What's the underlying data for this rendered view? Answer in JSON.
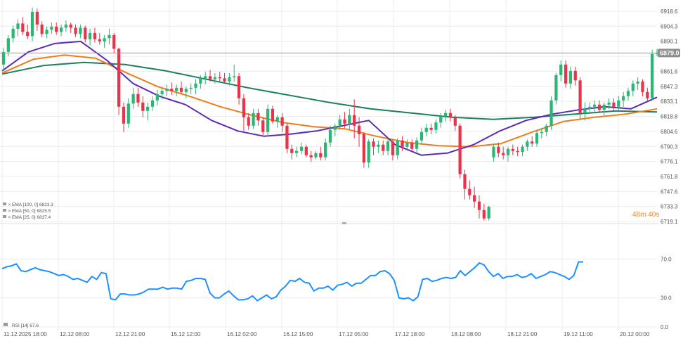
{
  "chart_data": [
    {
      "type": "candlestick",
      "title": "",
      "ylim": [
        6719.1,
        6918.6
      ],
      "current_price": 6879.0,
      "countdown": "48m 40s",
      "y_ticks": [
        "6918.6",
        "6904.3",
        "6890.1",
        "6875.8",
        "6861.6",
        "6847.3",
        "6833.1",
        "6818.8",
        "6804.6",
        "6790.3",
        "6776.1",
        "6761.8",
        "6747.6",
        "6733.3",
        "6719.1"
      ],
      "x_ticks": [
        "11.12.2025 18:00",
        "12.12 08:00",
        "12.12 21:00",
        "15.12 12:00",
        "16.12 02:00",
        "16.12 15:00",
        "17.12 05:00",
        "17.12 18:00",
        "18.12 08:00",
        "18.12 21:00",
        "19.12 11:00",
        "20.12 00:00"
      ],
      "legend": [
        {
          "label": "EMA [100, 0]",
          "value": "6823.3",
          "color": "#1a7f5a"
        },
        {
          "label": "EMA [50, 0]",
          "value": "6825.5",
          "color": "#f07c1a"
        },
        {
          "label": "EMA [25, 0]",
          "value": "6837.4",
          "color": "#5b2bb5"
        }
      ],
      "colors": {
        "up": "#2bb673",
        "down": "#e8334a",
        "grid": "#ececec",
        "axis_text": "#555555",
        "price_line": "#9a9a9a",
        "price_tag": "#8c8c8c",
        "countdown": "#f0861a"
      },
      "candles": [
        [
          6868,
          6884,
          6863,
          6880
        ],
        [
          6880,
          6896,
          6876,
          6893
        ],
        [
          6893,
          6905,
          6889,
          6902
        ],
        [
          6902,
          6911,
          6895,
          6907
        ],
        [
          6907,
          6913,
          6896,
          6899
        ],
        [
          6899,
          6906,
          6892,
          6895
        ],
        [
          6895,
          6922,
          6890,
          6918
        ],
        [
          6918,
          6921,
          6900,
          6906
        ],
        [
          6906,
          6909,
          6894,
          6897
        ],
        [
          6897,
          6904,
          6893,
          6901
        ],
        [
          6901,
          6908,
          6897,
          6904
        ],
        [
          6904,
          6908,
          6896,
          6899
        ],
        [
          6899,
          6906,
          6895,
          6903
        ],
        [
          6903,
          6910,
          6899,
          6906
        ],
        [
          6906,
          6908,
          6898,
          6903
        ],
        [
          6903,
          6906,
          6894,
          6897
        ],
        [
          6897,
          6906,
          6893,
          6903
        ],
        [
          6903,
          6905,
          6889,
          6892
        ],
        [
          6892,
          6902,
          6886,
          6898
        ],
        [
          6898,
          6903,
          6889,
          6892
        ],
        [
          6892,
          6898,
          6887,
          6890
        ],
        [
          6890,
          6896,
          6884,
          6893
        ],
        [
          6893,
          6902,
          6887,
          6896
        ],
        [
          6896,
          6898,
          6879,
          6883
        ],
        [
          6883,
          6884,
          6820,
          6828
        ],
        [
          6828,
          6832,
          6804,
          6812
        ],
        [
          6812,
          6836,
          6808,
          6831
        ],
        [
          6831,
          6846,
          6826,
          6840
        ],
        [
          6840,
          6846,
          6828,
          6832
        ],
        [
          6832,
          6838,
          6818,
          6824
        ],
        [
          6824,
          6832,
          6815,
          6828
        ],
        [
          6828,
          6838,
          6824,
          6834
        ],
        [
          6834,
          6844,
          6829,
          6840
        ],
        [
          6840,
          6846,
          6835,
          6843
        ],
        [
          6843,
          6849,
          6838,
          6845
        ],
        [
          6845,
          6851,
          6839,
          6843
        ],
        [
          6843,
          6849,
          6838,
          6846
        ],
        [
          6846,
          6852,
          6840,
          6842
        ],
        [
          6842,
          6847,
          6836,
          6845
        ],
        [
          6845,
          6850,
          6840,
          6846
        ],
        [
          6846,
          6854,
          6840,
          6850
        ],
        [
          6850,
          6858,
          6845,
          6855
        ],
        [
          6855,
          6861,
          6849,
          6857
        ],
        [
          6857,
          6863,
          6852,
          6854
        ],
        [
          6854,
          6860,
          6850,
          6856
        ],
        [
          6856,
          6861,
          6852,
          6855
        ],
        [
          6855,
          6860,
          6850,
          6852
        ],
        [
          6852,
          6860,
          6848,
          6856
        ],
        [
          6856,
          6868,
          6852,
          6857
        ],
        [
          6857,
          6860,
          6830,
          6836
        ],
        [
          6836,
          6840,
          6805,
          6818
        ],
        [
          6818,
          6822,
          6806,
          6810
        ],
        [
          6810,
          6826,
          6807,
          6822
        ],
        [
          6822,
          6826,
          6810,
          6815
        ],
        [
          6815,
          6818,
          6800,
          6804
        ],
        [
          6804,
          6830,
          6800,
          6826
        ],
        [
          6826,
          6829,
          6812,
          6814
        ],
        [
          6814,
          6820,
          6808,
          6818
        ],
        [
          6818,
          6822,
          6804,
          6810
        ],
        [
          6810,
          6812,
          6784,
          6788
        ],
        [
          6788,
          6792,
          6778,
          6784
        ],
        [
          6784,
          6790,
          6780,
          6786
        ],
        [
          6786,
          6794,
          6783,
          6790
        ],
        [
          6790,
          6792,
          6780,
          6782
        ],
        [
          6782,
          6786,
          6776,
          6780
        ],
        [
          6780,
          6786,
          6778,
          6784
        ],
        [
          6784,
          6790,
          6777,
          6780
        ],
        [
          6780,
          6798,
          6777,
          6794
        ],
        [
          6794,
          6810,
          6790,
          6806
        ],
        [
          6806,
          6812,
          6800,
          6810
        ],
        [
          6810,
          6820,
          6806,
          6816
        ],
        [
          6816,
          6823,
          6808,
          6812
        ],
        [
          6812,
          6826,
          6807,
          6820
        ],
        [
          6820,
          6835,
          6798,
          6810
        ],
        [
          6810,
          6818,
          6790,
          6802
        ],
        [
          6802,
          6804,
          6770,
          6775
        ],
        [
          6775,
          6797,
          6770,
          6795
        ],
        [
          6795,
          6798,
          6782,
          6790
        ],
        [
          6790,
          6796,
          6784,
          6792
        ],
        [
          6792,
          6796,
          6782,
          6786
        ],
        [
          6786,
          6798,
          6782,
          6795
        ],
        [
          6795,
          6797,
          6777,
          6782
        ],
        [
          6782,
          6798,
          6778,
          6796
        ],
        [
          6796,
          6800,
          6786,
          6790
        ],
        [
          6790,
          6797,
          6786,
          6794
        ],
        [
          6794,
          6797,
          6785,
          6788
        ],
        [
          6788,
          6799,
          6785,
          6796
        ],
        [
          6796,
          6808,
          6792,
          6804
        ],
        [
          6804,
          6812,
          6800,
          6808
        ],
        [
          6808,
          6812,
          6802,
          6806
        ],
        [
          6806,
          6816,
          6803,
          6813
        ],
        [
          6813,
          6822,
          6808,
          6819
        ],
        [
          6819,
          6825,
          6814,
          6822
        ],
        [
          6822,
          6826,
          6814,
          6818
        ],
        [
          6818,
          6820,
          6805,
          6810
        ],
        [
          6810,
          6812,
          6760,
          6764
        ],
        [
          6764,
          6768,
          6740,
          6750
        ],
        [
          6750,
          6758,
          6740,
          6744
        ],
        [
          6744,
          6752,
          6732,
          6738
        ],
        [
          6738,
          6744,
          6722,
          6730
        ],
        [
          6730,
          6736,
          6720,
          6722
        ],
        [
          6722,
          6734,
          6720,
          6733
        ],
        [
          6780,
          6792,
          6776,
          6790
        ],
        [
          6790,
          6794,
          6780,
          6784
        ],
        [
          6784,
          6790,
          6778,
          6782
        ],
        [
          6782,
          6790,
          6776,
          6788
        ],
        [
          6788,
          6792,
          6782,
          6786
        ],
        [
          6786,
          6790,
          6781,
          6785
        ],
        [
          6785,
          6792,
          6781,
          6790
        ],
        [
          6790,
          6797,
          6786,
          6795
        ],
        [
          6795,
          6800,
          6790,
          6793
        ],
        [
          6793,
          6806,
          6790,
          6803
        ],
        [
          6803,
          6808,
          6798,
          6804
        ],
        [
          6804,
          6812,
          6800,
          6810
        ],
        [
          6810,
          6838,
          6806,
          6834
        ],
        [
          6834,
          6860,
          6830,
          6858
        ],
        [
          6858,
          6872,
          6852,
          6868
        ],
        [
          6868,
          6872,
          6846,
          6850
        ],
        [
          6850,
          6866,
          6845,
          6862
        ],
        [
          6862,
          6866,
          6848,
          6853
        ],
        [
          6853,
          6856,
          6816,
          6822
        ],
        [
          6822,
          6832,
          6815,
          6826
        ],
        [
          6826,
          6832,
          6821,
          6828
        ],
        [
          6828,
          6834,
          6822,
          6830
        ],
        [
          6830,
          6834,
          6822,
          6825
        ],
        [
          6825,
          6832,
          6820,
          6830
        ],
        [
          6830,
          6836,
          6826,
          6832
        ],
        [
          6832,
          6836,
          6824,
          6828
        ],
        [
          6828,
          6838,
          6824,
          6834
        ],
        [
          6834,
          6842,
          6828,
          6838
        ],
        [
          6838,
          6846,
          6834,
          6843
        ],
        [
          6843,
          6853,
          6838,
          6850
        ],
        [
          6850,
          6856,
          6844,
          6852
        ],
        [
          6852,
          6854,
          6838,
          6842
        ],
        [
          6842,
          6846,
          6832,
          6836
        ],
        [
          6836,
          6882,
          6834,
          6878
        ],
        [
          6878,
          6883,
          6876,
          6879
        ]
      ],
      "series": [
        {
          "name": "EMA 100",
          "color": "#1a7f5a",
          "values": [
            6859,
            6867,
            6870,
            6868,
            6862,
            6854,
            6846,
            6839,
            6832,
            6826,
            6822,
            6818,
            6816,
            6818,
            6821,
            6824,
            6823
          ]
        },
        {
          "name": "EMA 50",
          "color": "#f07c1a",
          "values": [
            6860,
            6873,
            6877,
            6874,
            6860,
            6847,
            6838,
            6828,
            6820,
            6813,
            6809,
            6807,
            6800,
            6794,
            6791,
            6790,
            6793,
            6804,
            6814,
            6818,
            6821,
            6826
          ]
        },
        {
          "name": "EMA 25",
          "color": "#5b2bb5",
          "values": [
            6862,
            6880,
            6888,
            6890,
            6872,
            6850,
            6838,
            6830,
            6815,
            6805,
            6800,
            6802,
            6805,
            6810,
            6815,
            6792,
            6782,
            6784,
            6792,
            6805,
            6815,
            6821,
            6825,
            6828,
            6826,
            6837
          ]
        }
      ]
    },
    {
      "type": "line",
      "title": "",
      "legend_label": "RSI [14]",
      "legend_value": "67.6",
      "ylim": [
        0,
        100
      ],
      "y_ticks": [
        "70.0",
        "30.0",
        "0.0"
      ],
      "color": "#1e90ff",
      "values": [
        60,
        62,
        63,
        65,
        58,
        57,
        59,
        61,
        59,
        58,
        57,
        55,
        53,
        54,
        52,
        49,
        50,
        48,
        46,
        52,
        49,
        56,
        55,
        29,
        28,
        34,
        34,
        33,
        33,
        34,
        36,
        39,
        39,
        39,
        41,
        39,
        40,
        40,
        39,
        47,
        48,
        50,
        50,
        49,
        35,
        30,
        30,
        34,
        37,
        32,
        28,
        28,
        29,
        32,
        27,
        30,
        33,
        29,
        31,
        38,
        42,
        48,
        47,
        50,
        46,
        45,
        37,
        40,
        40,
        42,
        38,
        43,
        44,
        46,
        42,
        45,
        45,
        49,
        53,
        53,
        57,
        58,
        55,
        48,
        30,
        29,
        30,
        27,
        31,
        49,
        50,
        47,
        48,
        50,
        51,
        50,
        51,
        58,
        53,
        57,
        61,
        66,
        64,
        57,
        52,
        55,
        50,
        52,
        52,
        54,
        51,
        52,
        55,
        50,
        52,
        54,
        57,
        56,
        54,
        52,
        49,
        53,
        67,
        67
      ]
    }
  ]
}
